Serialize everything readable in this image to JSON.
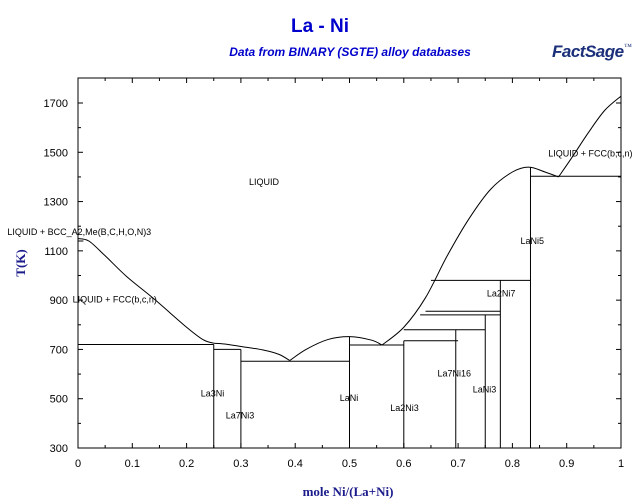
{
  "header": {
    "title": "La - Ni",
    "subtitle": "Data from BINARY (SGTE) alloy databases",
    "logo_text": "FactSage",
    "logo_tm": "™"
  },
  "colors": {
    "title": "#0000cc",
    "subtitle": "#0000cc",
    "axis_title": "#1b1b8c",
    "lines": "#000000",
    "logo": "#1b2f7a"
  },
  "chart_data": {
    "type": "line",
    "title": "La - Ni",
    "subtitle": "Data from BINARY (SGTE) alloy databases",
    "xlabel": "mole Ni/(La+Ni)",
    "ylabel": "T(K)",
    "xlim": [
      0,
      1
    ],
    "ylim": [
      300,
      1800
    ],
    "xticks": [
      0,
      0.1,
      0.2,
      0.3,
      0.4,
      0.5,
      0.6,
      0.7,
      0.8,
      0.9,
      1
    ],
    "xtick_labels": [
      "0",
      "0.1",
      "0.2",
      "0.3",
      "0.4",
      "0.5",
      "0.6",
      "0.7",
      "0.8",
      "0.9",
      "1"
    ],
    "yticks": [
      300,
      500,
      700,
      900,
      1100,
      1300,
      1500,
      1700
    ],
    "ytick_labels": [
      "300",
      "500",
      "700",
      "900",
      "1100",
      "1300",
      "1500",
      "1700"
    ],
    "grid": false,
    "liquidus_curves": [
      {
        "x": [
          0,
          0.02,
          0.05,
          0.09,
          0.14,
          0.2,
          0.23,
          0.25
        ],
        "y": [
          1150,
          1140,
          1080,
          995,
          905,
          790,
          740,
          725
        ]
      },
      {
        "x": [
          0.25,
          0.27,
          0.3,
          0.34,
          0.37,
          0.39
        ],
        "y": [
          725,
          722,
          712,
          698,
          680,
          655
        ]
      },
      {
        "x": [
          0.39,
          0.42,
          0.46,
          0.5,
          0.54,
          0.56
        ],
        "y": [
          655,
          700,
          740,
          752,
          738,
          718
        ]
      },
      {
        "x": [
          0.56,
          0.6,
          0.64,
          0.68,
          0.72,
          0.76,
          0.8,
          0.83,
          0.86,
          0.885
        ],
        "y": [
          718,
          790,
          910,
          1080,
          1230,
          1350,
          1420,
          1440,
          1420,
          1400
        ]
      },
      {
        "x": [
          0.885,
          0.91,
          0.94,
          0.97,
          1.0
        ],
        "y": [
          1400,
          1480,
          1580,
          1670,
          1728
        ]
      }
    ],
    "solidus_lines": [
      {
        "x": [
          0,
          0.25
        ],
        "y": [
          720,
          720
        ]
      },
      {
        "x": [
          0,
          0.01
        ],
        "y": [
          1140,
          1140
        ]
      },
      {
        "x": [
          0.25,
          0.3
        ],
        "y": [
          700,
          700
        ]
      },
      {
        "x": [
          0.3,
          0.5
        ],
        "y": [
          652,
          652
        ]
      },
      {
        "x": [
          0.5,
          0.6
        ],
        "y": [
          718,
          718
        ]
      },
      {
        "x": [
          0.6,
          0.7
        ],
        "y": [
          735,
          735
        ]
      },
      {
        "x": [
          0.6,
          0.75
        ],
        "y": [
          780,
          780
        ]
      },
      {
        "x": [
          0.63,
          0.778
        ],
        "y": [
          840,
          840
        ]
      },
      {
        "x": [
          0.64,
          0.778
        ],
        "y": [
          855,
          855
        ]
      },
      {
        "x": [
          0.65,
          0.833
        ],
        "y": [
          980,
          980
        ]
      },
      {
        "x": [
          0.833,
          1.0
        ],
        "y": [
          1403,
          1403
        ]
      }
    ],
    "compound_lines": [
      {
        "name": "La3Ni",
        "x": 0.25,
        "y_top": 720
      },
      {
        "name": "La7Ni3",
        "x": 0.3,
        "y_top": 700
      },
      {
        "name": "LaNi",
        "x": 0.5,
        "y_top": 752
      },
      {
        "name": "La2Ni3",
        "x": 0.6,
        "y_top": 735
      },
      {
        "name": "La7Ni16",
        "x": 0.6957,
        "y_top": 780
      },
      {
        "name": "LaNi3",
        "x": 0.75,
        "y_top": 840
      },
      {
        "name": "La2Ni7",
        "x": 0.7778,
        "y_top": 980
      },
      {
        "name": "LaNi5",
        "x": 0.8333,
        "y_top": 1440
      }
    ],
    "annotations": [
      {
        "text": "LIQUID",
        "x": 0.315,
        "y": 1368
      },
      {
        "text": "LIQUID + BCC_A2,Me(B,C,H,O,N)3",
        "x": -0.13,
        "y": 1165
      },
      {
        "text": "LIQUID + FCC(b,c,n)",
        "x": -0.01,
        "y": 890
      },
      {
        "text": "LIQUID + FCC(b,c,n)",
        "x": 0.866,
        "y": 1482
      },
      {
        "text": "LaNi5",
        "x": 0.815,
        "y": 1128
      },
      {
        "text": "La2Ni7",
        "x": 0.753,
        "y": 915
      },
      {
        "text": "LaNi3",
        "x": 0.727,
        "y": 525
      },
      {
        "text": "La7Ni16",
        "x": 0.662,
        "y": 590
      },
      {
        "text": "La3Ni",
        "x": 0.226,
        "y": 510
      },
      {
        "text": "La7Ni3",
        "x": 0.272,
        "y": 420
      },
      {
        "text": "LaNi",
        "x": 0.482,
        "y": 490
      },
      {
        "text": "La2Ni3",
        "x": 0.575,
        "y": 450
      }
    ]
  }
}
